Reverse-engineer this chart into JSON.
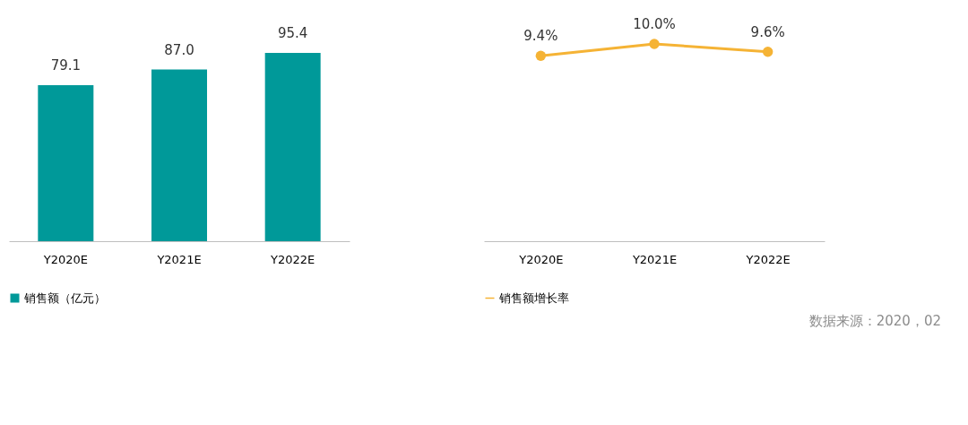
{
  "chart_data": [
    {
      "type": "bar",
      "categories": [
        "Y2020E",
        "Y2021E",
        "Y2022E"
      ],
      "series": [
        {
          "name": "销售额（亿元）",
          "color": "#009999",
          "values": [
            79.1,
            87.0,
            95.4
          ],
          "value_labels": [
            "79.1",
            "87.0",
            "95.4"
          ]
        }
      ],
      "legend": "bottom",
      "grid": false
    },
    {
      "type": "line",
      "categories": [
        "Y2020E",
        "Y2021E",
        "Y2022E"
      ],
      "series": [
        {
          "name": "销售额增长率",
          "color": "#f5b335",
          "values": [
            9.4,
            10.0,
            9.6
          ],
          "value_labels": [
            "9.4%",
            "10.0%",
            "9.6%"
          ]
        }
      ],
      "legend": "bottom",
      "grid": false,
      "marker": "circle",
      "line_style": "solid",
      "annotations": [
        "数据来源：2020，02"
      ]
    }
  ]
}
